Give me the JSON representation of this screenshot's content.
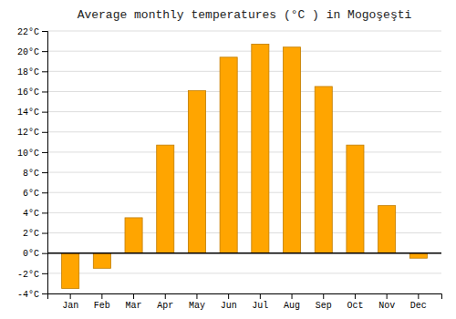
{
  "chart_data": {
    "type": "bar",
    "title": "Average monthly temperatures (°C ) in Mogoşeşti",
    "categories": [
      "Jan",
      "Feb",
      "Mar",
      "Apr",
      "May",
      "Jun",
      "Jul",
      "Aug",
      "Sep",
      "Oct",
      "Nov",
      "Dec"
    ],
    "values": [
      -3.5,
      -1.5,
      3.5,
      10.7,
      16.1,
      19.4,
      20.7,
      20.4,
      16.5,
      10.7,
      4.7,
      -0.5
    ],
    "color": "#FFA500",
    "ylim": [
      -4,
      22
    ],
    "yticks": [
      {
        "value": -4,
        "label": "-4°C"
      },
      {
        "value": -2,
        "label": "-2°C"
      },
      {
        "value": 0,
        "label": "0°C"
      },
      {
        "value": 2,
        "label": "2°C"
      },
      {
        "value": 4,
        "label": "4°C"
      },
      {
        "value": 6,
        "label": "6°C"
      },
      {
        "value": 8,
        "label": "8°C"
      },
      {
        "value": 10,
        "label": "10°C"
      },
      {
        "value": 12,
        "label": "12°C"
      },
      {
        "value": 14,
        "label": "14°C"
      },
      {
        "value": 16,
        "label": "16°C"
      },
      {
        "value": 18,
        "label": "18°C"
      },
      {
        "value": 20,
        "label": "20°C"
      },
      {
        "value": 22,
        "label": "22°C"
      }
    ],
    "grid": true
  }
}
